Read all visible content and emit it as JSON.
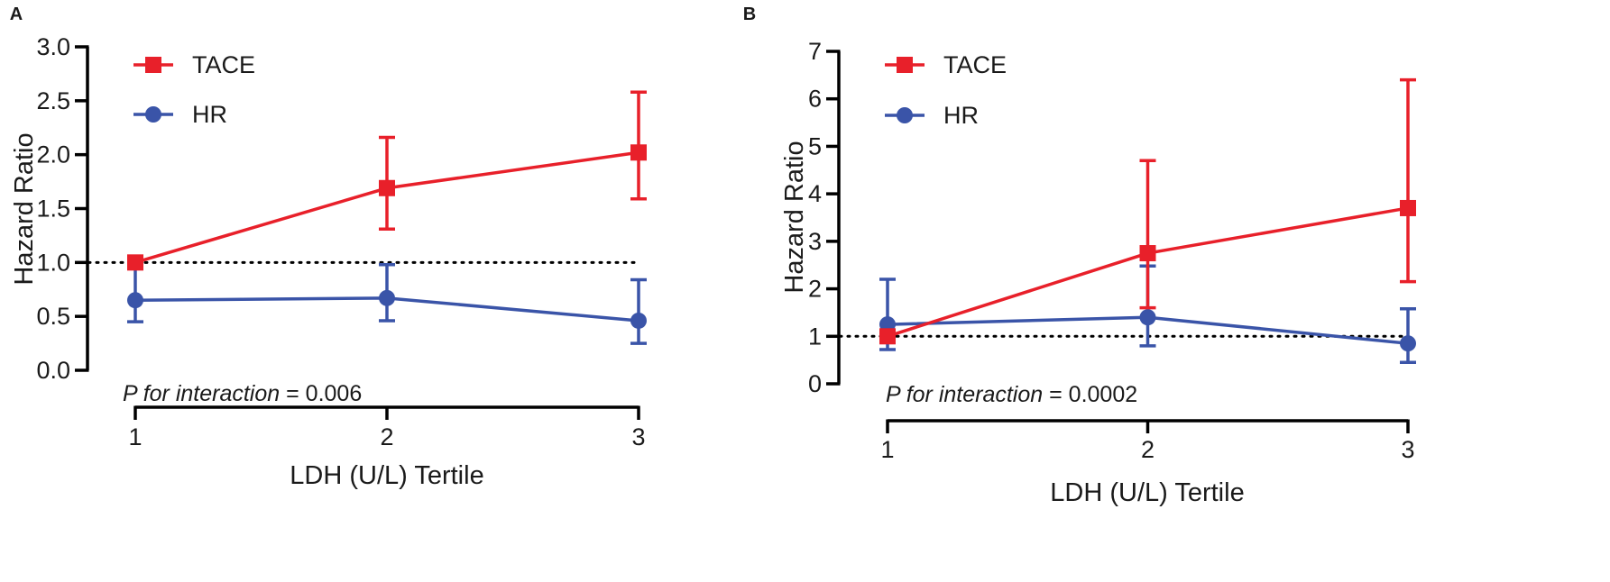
{
  "chart_data": [
    {
      "panel_label": "A",
      "type": "line",
      "title": "",
      "xlabel": "LDH (U/L) Tertile",
      "ylabel": "Hazard Ratio",
      "x": [
        1,
        2,
        3
      ],
      "x_ticks": [
        "1",
        "2",
        "3"
      ],
      "ylim": [
        0,
        3
      ],
      "y_ticks": [
        "0.0",
        "0.5",
        "1.0",
        "1.5",
        "2.0",
        "2.5",
        "3.0"
      ],
      "reference_line": 1.0,
      "series": [
        {
          "name": "TACE",
          "marker": "square",
          "color": "#e8202a",
          "values": [
            1.0,
            1.69,
            2.02
          ],
          "lower": [
            1.0,
            1.31,
            1.59
          ],
          "upper": [
            1.0,
            2.16,
            2.58
          ]
        },
        {
          "name": "HR",
          "marker": "circle",
          "color": "#3a54a8",
          "values": [
            0.65,
            0.67,
            0.46
          ],
          "lower": [
            0.45,
            0.46,
            0.25
          ],
          "upper": [
            0.97,
            0.98,
            0.84
          ]
        }
      ],
      "annotation": {
        "italic": "P for interaction",
        "rest": " = 0.006"
      }
    },
    {
      "panel_label": "B",
      "type": "line",
      "title": "",
      "xlabel": "LDH (U/L) Tertile",
      "ylabel": "Hazard Ratio",
      "x": [
        1,
        2,
        3
      ],
      "x_ticks": [
        "1",
        "2",
        "3"
      ],
      "ylim": [
        0,
        7
      ],
      "y_ticks": [
        "0",
        "1",
        "2",
        "3",
        "4",
        "5",
        "6",
        "7"
      ],
      "reference_line": 1.0,
      "series": [
        {
          "name": "TACE",
          "marker": "square",
          "color": "#e8202a",
          "values": [
            1.0,
            2.75,
            3.7
          ],
          "lower": [
            1.0,
            1.6,
            2.15
          ],
          "upper": [
            1.0,
            4.7,
            6.4
          ]
        },
        {
          "name": "HR",
          "marker": "circle",
          "color": "#3a54a8",
          "values": [
            1.25,
            1.4,
            0.85
          ],
          "lower": [
            0.72,
            0.8,
            0.45
          ],
          "upper": [
            2.2,
            2.48,
            1.58
          ]
        }
      ],
      "annotation": {
        "italic": "P for interaction",
        "rest": " = 0.0002"
      }
    }
  ]
}
